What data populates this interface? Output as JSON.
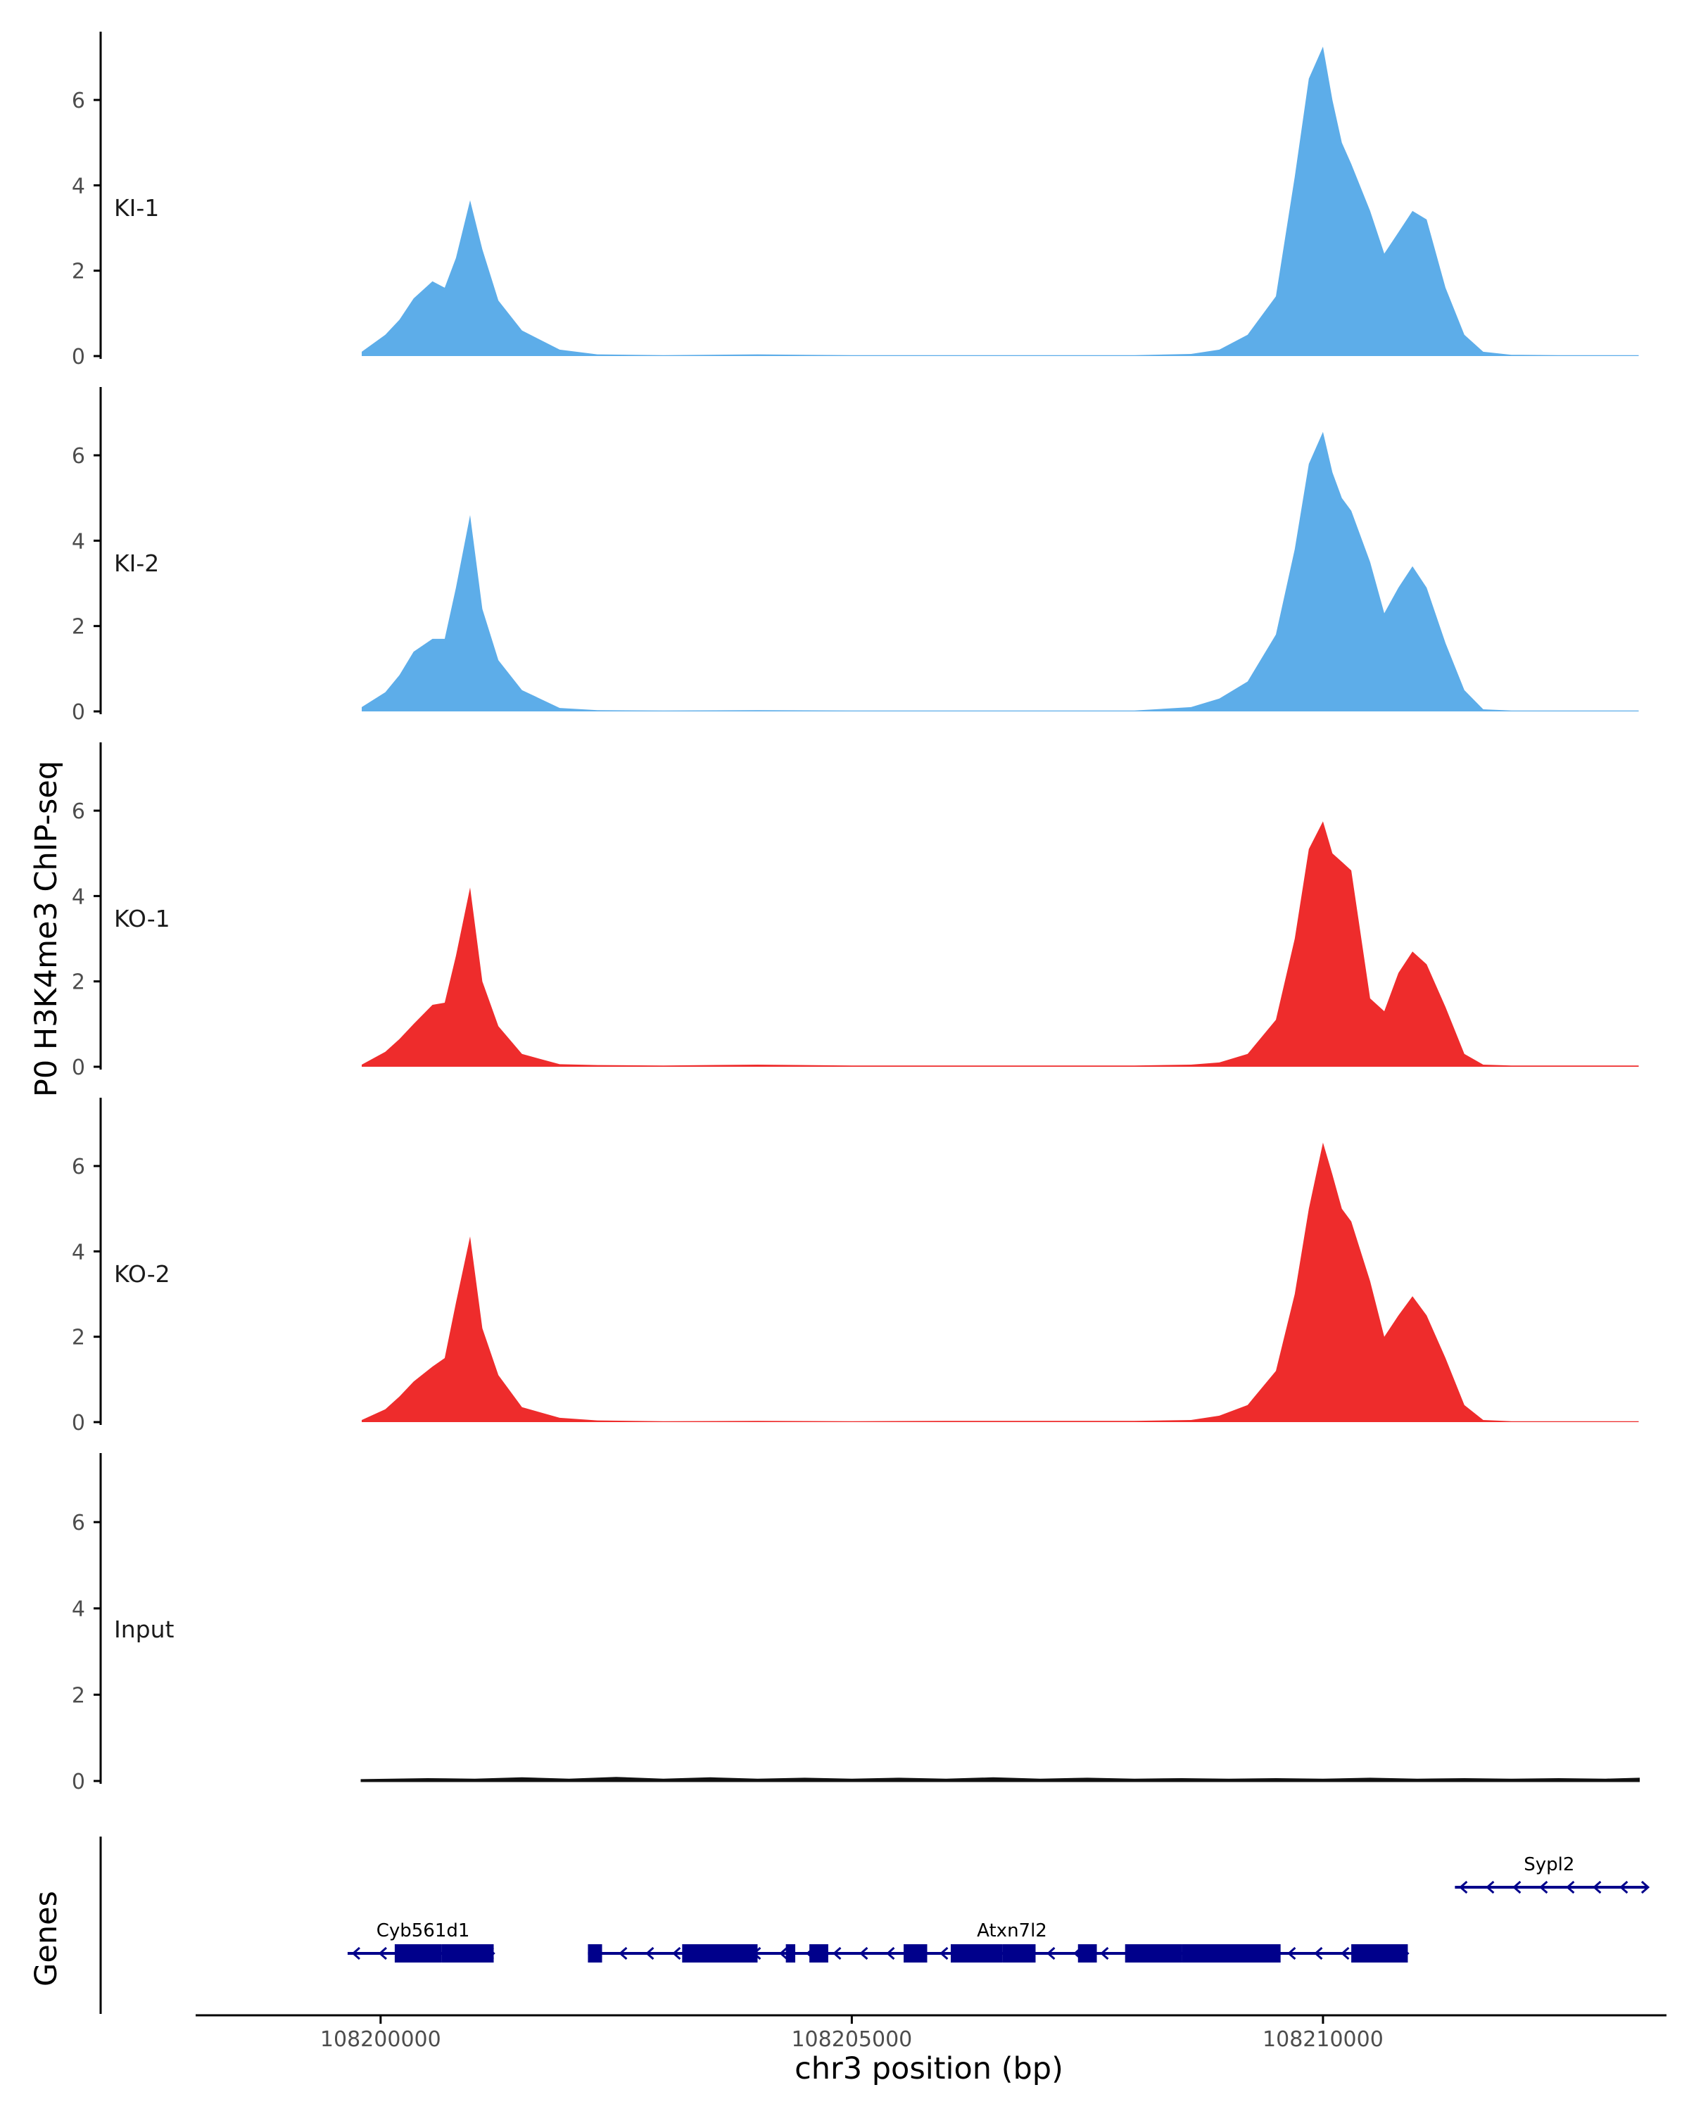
{
  "chart_data": {
    "type": "area",
    "title": "",
    "ylabel": "P0 H3K4me3 ChIP-seq",
    "xlabel": "chr3 position (bp)",
    "genes_label": "Genes",
    "xlim": [
      108198000,
      108213600
    ],
    "ylim": [
      0,
      7.6
    ],
    "x_ticks": [
      108200000,
      108205000,
      108210000
    ],
    "x_tick_labels": [
      "108200000",
      "108205000",
      "108210000"
    ],
    "y_ticks": [
      0,
      2,
      4,
      6
    ],
    "y_tick_labels": [
      "0",
      "2",
      "4",
      "6"
    ],
    "colors": {
      "KI": "#5dade9",
      "KO": "#ee2c2c",
      "Input": "#111111",
      "gene": "#00008b",
      "axis": "#000000"
    },
    "series": [
      {
        "name": "KI-1",
        "color": "#5dade9",
        "x": [
          108199800,
          108200050,
          108200200,
          108200350,
          108200550,
          108200680,
          108200800,
          108200950,
          108201080,
          108201250,
          108201500,
          108201900,
          108202300,
          108203000,
          108204000,
          108205000,
          108206000,
          108207000,
          108208000,
          108208600,
          108208900,
          108209200,
          108209500,
          108209700,
          108209850,
          108210000,
          108210100,
          108210200,
          108210300,
          108210500,
          108210650,
          108210800,
          108210950,
          108211100,
          108211300,
          108211500,
          108211700,
          108212000,
          108212500,
          108213000,
          108213350
        ],
        "values": [
          0.1,
          0.5,
          0.85,
          1.35,
          1.75,
          1.6,
          2.3,
          3.65,
          2.5,
          1.3,
          0.6,
          0.15,
          0.04,
          0.02,
          0.04,
          0.02,
          0.02,
          0.02,
          0.02,
          0.05,
          0.15,
          0.5,
          1.4,
          4.2,
          6.5,
          7.25,
          6.0,
          5.0,
          4.5,
          3.4,
          2.4,
          2.9,
          3.4,
          3.2,
          1.6,
          0.5,
          0.1,
          0.03,
          0.02,
          0.02,
          0.02
        ]
      },
      {
        "name": "KI-2",
        "color": "#5dade9",
        "x": [
          108199800,
          108200050,
          108200200,
          108200350,
          108200550,
          108200680,
          108200800,
          108200950,
          108201080,
          108201250,
          108201500,
          108201900,
          108202300,
          108203000,
          108204000,
          108205000,
          108206000,
          108207000,
          108208000,
          108208600,
          108208900,
          108209200,
          108209500,
          108209700,
          108209850,
          108210000,
          108210100,
          108210200,
          108210300,
          108210500,
          108210650,
          108210800,
          108210950,
          108211100,
          108211300,
          108211500,
          108211700,
          108212000,
          108212500,
          108213000,
          108213350
        ],
        "values": [
          0.1,
          0.45,
          0.85,
          1.4,
          1.7,
          1.7,
          2.9,
          4.6,
          2.4,
          1.2,
          0.5,
          0.08,
          0.03,
          0.02,
          0.03,
          0.02,
          0.02,
          0.02,
          0.02,
          0.1,
          0.3,
          0.7,
          1.8,
          3.8,
          5.8,
          6.55,
          5.6,
          5.0,
          4.7,
          3.5,
          2.3,
          2.9,
          3.4,
          2.9,
          1.6,
          0.5,
          0.05,
          0.02,
          0.02,
          0.02,
          0.02
        ]
      },
      {
        "name": "KO-1",
        "color": "#ee2c2c",
        "x": [
          108199800,
          108200050,
          108200200,
          108200350,
          108200550,
          108200680,
          108200800,
          108200950,
          108201080,
          108201250,
          108201500,
          108201900,
          108202300,
          108203000,
          108204000,
          108205000,
          108206000,
          108207000,
          108208000,
          108208600,
          108208900,
          108209200,
          108209500,
          108209700,
          108209850,
          108210000,
          108210100,
          108210200,
          108210300,
          108210500,
          108210650,
          108210800,
          108210950,
          108211100,
          108211300,
          108211500,
          108211700,
          108212000,
          108212500,
          108213000,
          108213350
        ],
        "values": [
          0.05,
          0.35,
          0.65,
          1.0,
          1.45,
          1.5,
          2.6,
          4.2,
          2.0,
          0.95,
          0.3,
          0.06,
          0.04,
          0.03,
          0.05,
          0.03,
          0.03,
          0.03,
          0.03,
          0.05,
          0.1,
          0.3,
          1.1,
          3.0,
          5.1,
          5.75,
          5.0,
          4.8,
          4.6,
          1.6,
          1.3,
          2.2,
          2.7,
          2.4,
          1.4,
          0.3,
          0.05,
          0.03,
          0.03,
          0.03,
          0.03
        ]
      },
      {
        "name": "KO-2",
        "color": "#ee2c2c",
        "x": [
          108199800,
          108200050,
          108200200,
          108200350,
          108200550,
          108200680,
          108200800,
          108200950,
          108201080,
          108201250,
          108201500,
          108201900,
          108202300,
          108203000,
          108204000,
          108205000,
          108206000,
          108207000,
          108208000,
          108208600,
          108208900,
          108209200,
          108209500,
          108209700,
          108209850,
          108210000,
          108210100,
          108210200,
          108210300,
          108210500,
          108210650,
          108210800,
          108210950,
          108211100,
          108211300,
          108211500,
          108211700,
          108212000,
          108212500,
          108213000,
          108213350
        ],
        "values": [
          0.05,
          0.3,
          0.6,
          0.95,
          1.3,
          1.5,
          2.8,
          4.35,
          2.2,
          1.1,
          0.35,
          0.1,
          0.04,
          0.02,
          0.03,
          0.02,
          0.03,
          0.03,
          0.03,
          0.05,
          0.15,
          0.4,
          1.2,
          3.0,
          5.0,
          6.55,
          5.8,
          5.0,
          4.7,
          3.3,
          2.0,
          2.5,
          2.95,
          2.5,
          1.5,
          0.4,
          0.05,
          0.02,
          0.02,
          0.02,
          0.02
        ]
      },
      {
        "name": "Input",
        "color": "#111111",
        "x": [
          108199800,
          108200500,
          108201000,
          108201500,
          108202000,
          108202500,
          108203000,
          108203500,
          108204000,
          108204500,
          108205000,
          108205500,
          108206000,
          108206500,
          108207000,
          108207500,
          108208000,
          108208500,
          108209000,
          108209500,
          108210000,
          108210500,
          108211000,
          108211500,
          108212000,
          108212500,
          108213000,
          108213350
        ],
        "values": [
          0.02,
          0.04,
          0.03,
          0.06,
          0.03,
          0.07,
          0.03,
          0.06,
          0.03,
          0.05,
          0.03,
          0.05,
          0.03,
          0.06,
          0.03,
          0.05,
          0.03,
          0.04,
          0.03,
          0.04,
          0.03,
          0.05,
          0.03,
          0.04,
          0.03,
          0.04,
          0.03,
          0.05
        ]
      }
    ],
    "genes": [
      {
        "name": "Cyb561d1",
        "strand": "-",
        "row": 2,
        "start": 108199650,
        "end": 108201200,
        "label_at": 108200450,
        "exons": [
          [
            108200150,
            108200650
          ],
          [
            108200650,
            108201200
          ]
        ]
      },
      {
        "name": "Atxn7l2",
        "strand": "-",
        "row": 2,
        "start": 108202200,
        "end": 108210900,
        "label_at": 108206700,
        "exons": [
          [
            108202200,
            108202350
          ],
          [
            108203200,
            108204000
          ],
          [
            108204300,
            108204400
          ],
          [
            108204550,
            108204750
          ],
          [
            108205550,
            108205800
          ],
          [
            108206050,
            108206600
          ],
          [
            108206600,
            108206950
          ],
          [
            108207400,
            108207600
          ],
          [
            108207900,
            108208500
          ],
          [
            108208500,
            108209550
          ],
          [
            108210300,
            108210900
          ]
        ]
      },
      {
        "name": "Sypl2",
        "strand": "-",
        "row": 1,
        "start": 108211400,
        "end": 108213450,
        "label_at": 108212400,
        "exons": []
      }
    ]
  }
}
